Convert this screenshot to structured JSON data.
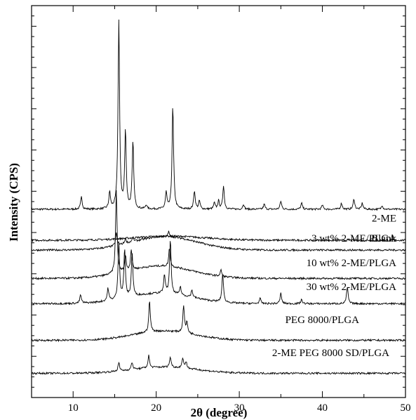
{
  "chart_data": {
    "type": "line",
    "title": "",
    "xlabel": "2θ (degree)",
    "ylabel": "Intensity (CPS)",
    "xlim": [
      5,
      50
    ],
    "x_ticks": [
      10,
      20,
      30,
      40,
      50
    ],
    "y_ticks_labeled": false,
    "grid": false,
    "legend": "inline labels, right side",
    "series": [
      {
        "name": "2-ME",
        "baseline": 0.925,
        "peaks": [
          [
            11.0,
            0.12
          ],
          [
            14.4,
            0.16
          ],
          [
            15.5,
            1.82
          ],
          [
            16.3,
            0.75
          ],
          [
            17.2,
            0.65
          ],
          [
            18.8,
            0.04
          ],
          [
            21.2,
            0.16
          ],
          [
            22.0,
            1.0
          ],
          [
            24.6,
            0.18
          ],
          [
            25.2,
            0.08
          ],
          [
            27.0,
            0.06
          ],
          [
            27.5,
            0.08
          ],
          [
            28.1,
            0.23
          ],
          [
            30.5,
            0.05
          ],
          [
            33.0,
            0.05
          ],
          [
            35.0,
            0.08
          ],
          [
            37.5,
            0.06
          ],
          [
            40.0,
            0.04
          ],
          [
            42.3,
            0.06
          ],
          [
            43.8,
            0.1
          ],
          [
            44.8,
            0.06
          ],
          [
            47.2,
            0.04
          ]
        ]
      },
      {
        "name": "Blank",
        "baseline": 0.625,
        "hump": {
          "center": 21.5,
          "width": 6.0,
          "height": 0.04
        },
        "peaks": []
      },
      {
        "name": "3 wt% 2-ME/PLGA",
        "baseline": 0.53,
        "hump": {
          "center": 21.0,
          "width": 5.5,
          "height": 0.13
        },
        "peaks": [
          [
            15.2,
            0.12
          ],
          [
            16.3,
            0.05
          ],
          [
            17.2,
            0.04
          ],
          [
            21.5,
            0.05
          ]
        ]
      },
      {
        "name": "10 wt% 2-ME/PLGA",
        "baseline": 0.255,
        "hump": {
          "center": 20.5,
          "width": 5.5,
          "height": 0.12
        },
        "peaks": [
          [
            15.2,
            0.8
          ],
          [
            16.3,
            0.15
          ],
          [
            17.0,
            0.2
          ],
          [
            21.6,
            0.18
          ],
          [
            27.8,
            0.06
          ]
        ]
      },
      {
        "name": "30 wt% 2-ME/PLGA",
        "baseline": 0.01,
        "hump": {
          "center": 20.5,
          "width": 5.5,
          "height": 0.1
        },
        "peaks": [
          [
            10.9,
            0.08
          ],
          [
            14.2,
            0.12
          ],
          [
            15.5,
            0.55
          ],
          [
            16.2,
            0.47
          ],
          [
            17.1,
            0.42
          ],
          [
            21.0,
            0.18
          ],
          [
            21.7,
            0.52
          ],
          [
            22.9,
            0.08
          ],
          [
            24.3,
            0.07
          ],
          [
            28.0,
            0.28
          ],
          [
            32.5,
            0.05
          ],
          [
            35.0,
            0.1
          ],
          [
            37.5,
            0.04
          ],
          [
            43.0,
            0.16
          ]
        ]
      },
      {
        "name": "PEG 8000/PLGA",
        "baseline": -0.345,
        "hump": {
          "center": 21.0,
          "width": 5.2,
          "height": 0.09
        },
        "peaks": [
          [
            19.2,
            0.3
          ],
          [
            23.3,
            0.26
          ],
          [
            23.7,
            0.1
          ]
        ]
      },
      {
        "name": "2-ME PEG 8000 SD/PLGA",
        "baseline": -0.665,
        "hump": {
          "center": 21.0,
          "width": 5.5,
          "height": 0.06
        },
        "peaks": [
          [
            15.5,
            0.08
          ],
          [
            17.1,
            0.07
          ],
          [
            19.1,
            0.12
          ],
          [
            21.7,
            0.1
          ],
          [
            23.2,
            0.1
          ],
          [
            23.6,
            0.06
          ]
        ]
      }
    ]
  }
}
